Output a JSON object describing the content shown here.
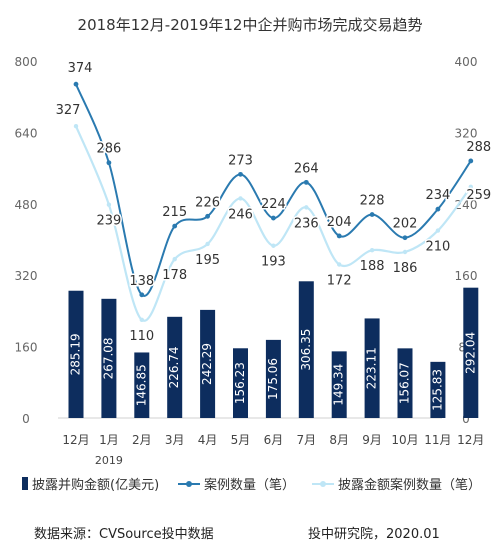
{
  "title": "2018年12月-2019年12中企并购市场完成交易趋势",
  "chart_data": {
    "type": "bar",
    "categories": [
      "12月",
      "1月",
      "2月",
      "3月",
      "4月",
      "5月",
      "6月",
      "7月",
      "8月",
      "9月",
      "10月",
      "11月",
      "12月"
    ],
    "year_label": "2019",
    "left_axis": {
      "ylim": [
        0,
        800
      ],
      "ticks": [
        0,
        160,
        320,
        480,
        640,
        800
      ]
    },
    "right_axis": {
      "ylim": [
        0,
        400
      ],
      "ticks": [
        0,
        80,
        160,
        240,
        320,
        400
      ]
    },
    "series": [
      {
        "name": "披露并购金额(亿美元)",
        "kind": "bar",
        "axis": "left",
        "color": "#0d2d5e",
        "values": [
          285.19,
          267.08,
          146.85,
          226.74,
          242.29,
          156.23,
          175.06,
          306.35,
          149.34,
          223.11,
          156.07,
          125.83,
          292.04
        ]
      },
      {
        "name": "案例数量（笔）",
        "kind": "line",
        "axis": "right",
        "color": "#2a7ab0",
        "values": [
          374,
          286,
          138,
          215,
          226,
          273,
          224,
          264,
          204,
          228,
          202,
          234,
          288
        ]
      },
      {
        "name": "披露金额案例数量（笔）",
        "kind": "line",
        "axis": "right",
        "color": "#bfe6f6",
        "values": [
          327,
          239,
          110,
          178,
          195,
          246,
          193,
          236,
          172,
          188,
          186,
          210,
          259
        ]
      }
    ],
    "grid": false
  },
  "footer": {
    "source": "数据来源：CVSource投中数据",
    "credit": "投中研究院，2020.01"
  }
}
